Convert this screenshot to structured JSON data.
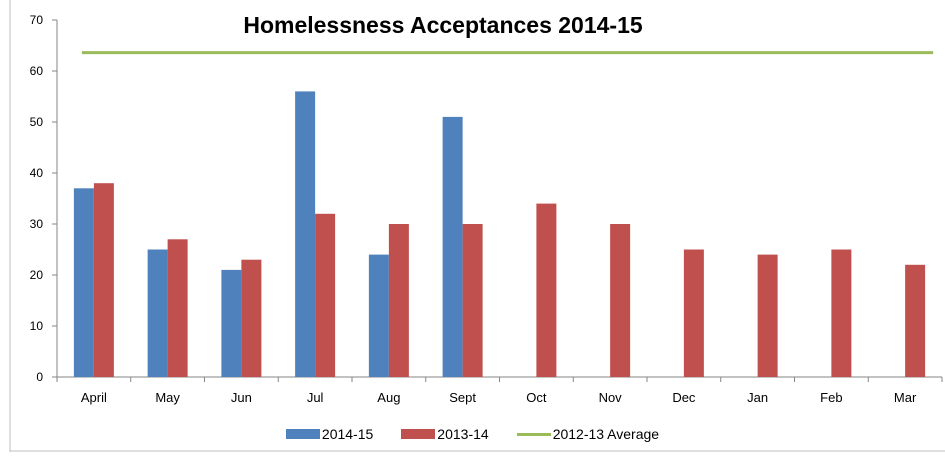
{
  "chart_data": {
    "type": "bar",
    "title": "Homelessness Acceptances 2014-15",
    "categories": [
      "April",
      "May",
      "Jun",
      "Jul",
      "Aug",
      "Sept",
      "Oct",
      "Nov",
      "Dec",
      "Jan",
      "Feb",
      "Mar"
    ],
    "series": [
      {
        "name": "2014-15",
        "color": "#4F81BD",
        "values": [
          37,
          25,
          21,
          56,
          24,
          51,
          null,
          null,
          null,
          null,
          null,
          null
        ]
      },
      {
        "name": "2013-14",
        "color": "#C0504D",
        "values": [
          38,
          27,
          23,
          32,
          30,
          30,
          34,
          30,
          25,
          24,
          25,
          22
        ]
      }
    ],
    "reference_line": {
      "name": "2012-13 Average",
      "color": "#9BBB59",
      "value": 63.6
    },
    "ylim": [
      0,
      70
    ],
    "yticks": [
      0,
      10,
      20,
      30,
      40,
      50,
      60,
      70
    ],
    "grid": false,
    "legend_position": "bottom"
  }
}
